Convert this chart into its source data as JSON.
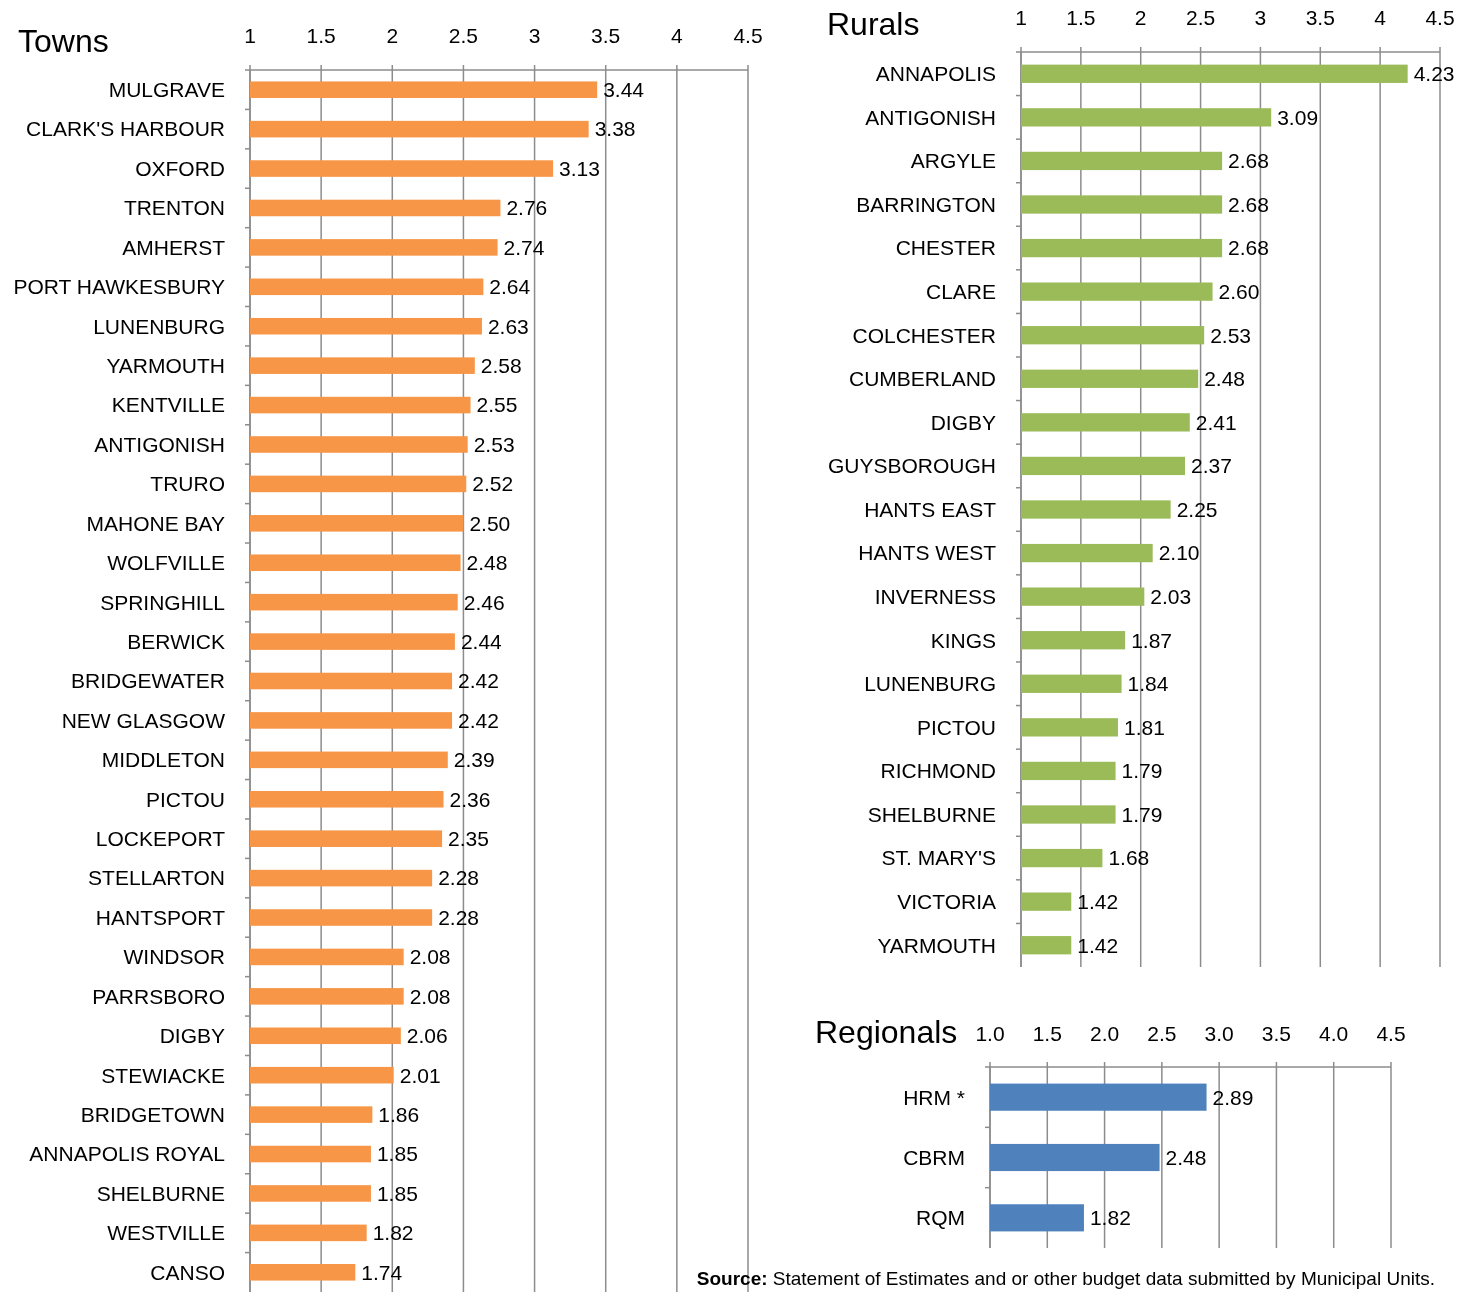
{
  "chart_data": [
    {
      "type": "bar",
      "orientation": "horizontal",
      "title": "Towns",
      "categories": [
        "MULGRAVE",
        "CLARK'S HARBOUR",
        "OXFORD",
        "TRENTON",
        "AMHERST",
        "PORT HAWKESBURY",
        "LUNENBURG",
        "YARMOUTH",
        "KENTVILLE",
        "ANTIGONISH",
        "TRURO",
        "MAHONE BAY",
        "WOLFVILLE",
        "SPRINGHILL",
        "BERWICK",
        "BRIDGEWATER",
        "NEW GLASGOW",
        "MIDDLETON",
        "PICTOU",
        "LOCKEPORT",
        "STELLARTON",
        "HANTSPORT",
        "WINDSOR",
        "PARRSBORO",
        "DIGBY",
        "STEWIACKE",
        "BRIDGETOWN",
        "ANNAPOLIS ROYAL",
        "SHELBURNE",
        "WESTVILLE",
        "CANSO"
      ],
      "values": [
        3.44,
        3.38,
        3.13,
        2.76,
        2.74,
        2.64,
        2.63,
        2.58,
        2.55,
        2.53,
        2.52,
        2.5,
        2.48,
        2.46,
        2.44,
        2.42,
        2.42,
        2.39,
        2.36,
        2.35,
        2.28,
        2.28,
        2.08,
        2.08,
        2.06,
        2.01,
        1.86,
        1.85,
        1.85,
        1.82,
        1.74
      ],
      "value_labels": [
        "3.44",
        "3.38",
        "3.13",
        "2.76",
        "2.74",
        "2.64",
        "2.63",
        "2.58",
        "2.55",
        "2.53",
        "2.52",
        "2.50",
        "2.48",
        "2.46",
        "2.44",
        "2.42",
        "2.42",
        "2.39",
        "2.36",
        "2.35",
        "2.28",
        "2.28",
        "2.08",
        "2.08",
        "2.06",
        "2.01",
        "1.86",
        "1.85",
        "1.85",
        "1.82",
        "1.74"
      ],
      "color": "#f79646",
      "xlim": [
        1,
        4.5
      ],
      "xticks": [
        1,
        1.5,
        2,
        2.5,
        3,
        3.5,
        4,
        4.5
      ],
      "grid": "x"
    },
    {
      "type": "bar",
      "orientation": "horizontal",
      "title": "Rurals",
      "categories": [
        "ANNAPOLIS",
        "ANTIGONISH",
        "ARGYLE",
        "BARRINGTON",
        "CHESTER",
        "CLARE",
        "COLCHESTER",
        "CUMBERLAND",
        "DIGBY",
        "GUYSBOROUGH",
        "HANTS EAST",
        "HANTS WEST",
        "INVERNESS",
        "KINGS",
        "LUNENBURG",
        "PICTOU",
        "RICHMOND",
        "SHELBURNE",
        "ST. MARY'S",
        "VICTORIA",
        "YARMOUTH"
      ],
      "values": [
        4.23,
        3.09,
        2.68,
        2.68,
        2.68,
        2.6,
        2.53,
        2.48,
        2.41,
        2.37,
        2.25,
        2.1,
        2.03,
        1.87,
        1.84,
        1.81,
        1.79,
        1.79,
        1.68,
        1.42,
        1.42
      ],
      "value_labels": [
        "4.23",
        "3.09",
        "2.68",
        "2.68",
        "2.68",
        "2.60",
        "2.53",
        "2.48",
        "2.41",
        "2.37",
        "2.25",
        "2.10",
        "2.03",
        "1.87",
        "1.84",
        "1.81",
        "1.79",
        "1.79",
        "1.68",
        "1.42",
        "1.42"
      ],
      "color": "#9bbb59",
      "xlim": [
        1,
        4.5
      ],
      "xticks": [
        1,
        1.5,
        2,
        2.5,
        3,
        3.5,
        4,
        4.5
      ],
      "grid": "x"
    },
    {
      "type": "bar",
      "orientation": "horizontal",
      "title": "Regionals",
      "categories": [
        "HRM *",
        "CBRM",
        "RQM"
      ],
      "values": [
        2.89,
        2.48,
        1.82
      ],
      "value_labels": [
        "2.89",
        "2.48",
        "1.82"
      ],
      "color": "#4f81bd",
      "xlim": [
        1,
        4.5
      ],
      "xticks": [
        {
          "value": 1,
          "label": "1.0"
        },
        {
          "value": 1.5,
          "label": "1.5"
        },
        {
          "value": 2,
          "label": "2.0"
        },
        {
          "value": 2.5,
          "label": "2.5"
        },
        {
          "value": 3,
          "label": "3.0"
        },
        {
          "value": 3.5,
          "label": "3.5"
        },
        {
          "value": 4,
          "label": "4.0"
        },
        {
          "value": 4.5,
          "label": "4.5"
        }
      ],
      "grid": "x",
      "annotations": [
        "Source: Statement of Estimates and or other budget data submitted by Municipal Units."
      ]
    }
  ]
}
